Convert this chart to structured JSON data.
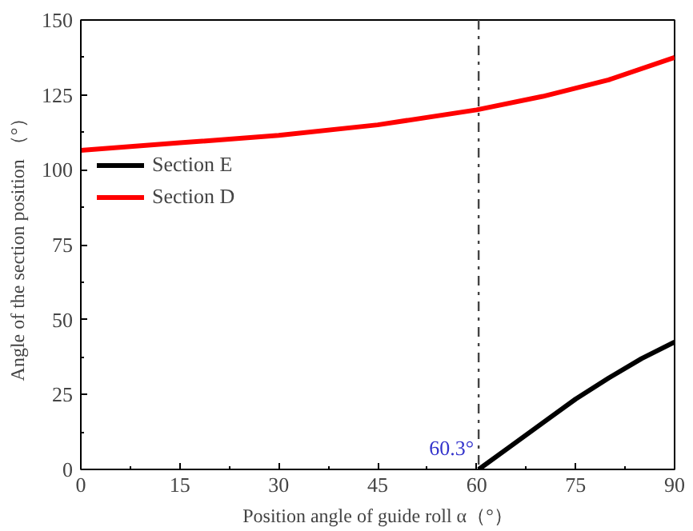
{
  "chart_data": {
    "type": "line",
    "xlabel": "Position angle of guide roll α（°）",
    "ylabel": "Angle of the section position （°）",
    "xlim": [
      0,
      90
    ],
    "ylim": [
      0,
      150
    ],
    "xticks": [
      0,
      15,
      30,
      45,
      60,
      75,
      90
    ],
    "yticks": [
      0,
      25,
      50,
      75,
      100,
      125,
      150
    ],
    "series": [
      {
        "name": "Section E",
        "color": "#000000",
        "x": [
          60.3,
          65,
          70,
          75,
          80,
          85,
          90
        ],
        "values": [
          0,
          7.5,
          15.5,
          23.5,
          30.5,
          37,
          42.5
        ]
      },
      {
        "name": "Section D",
        "color": "#ff0000",
        "x": [
          0,
          15,
          30,
          45,
          60,
          70,
          80,
          90
        ],
        "values": [
          106.5,
          109,
          111.5,
          115,
          120,
          124.5,
          130,
          137.5
        ]
      }
    ],
    "ref_lines": [
      {
        "axis": "x",
        "value": 60.3,
        "label": "60.3°",
        "color": "#444444",
        "line_style": "dashdot"
      }
    ],
    "legend": "top left",
    "grid": false
  }
}
